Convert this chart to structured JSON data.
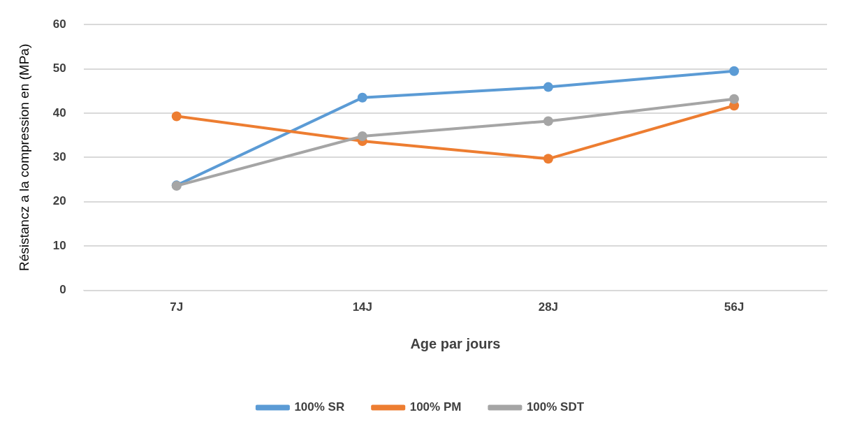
{
  "chart_data": {
    "type": "line",
    "xlabel": "Age par jours",
    "ylabel": "Résistancz a la compression en (MPa)",
    "categories": [
      "7J",
      "14J",
      "28J",
      "56J"
    ],
    "series": [
      {
        "name": "100% SR",
        "color": "#5b9bd5",
        "values": [
          23.7,
          43.5,
          45.9,
          49.5
        ]
      },
      {
        "name": "100% PM",
        "color": "#ed7d31",
        "values": [
          39.3,
          33.7,
          29.7,
          41.7
        ]
      },
      {
        "name": "100% SDT",
        "color": "#a5a5a5",
        "values": [
          23.6,
          34.8,
          38.2,
          43.2
        ]
      }
    ],
    "ylim": [
      0,
      60
    ],
    "yticks": [
      0,
      10,
      20,
      30,
      40,
      50,
      60
    ],
    "grid": "y",
    "legend": "bottom",
    "marker": "circle",
    "line_style": "solid"
  }
}
